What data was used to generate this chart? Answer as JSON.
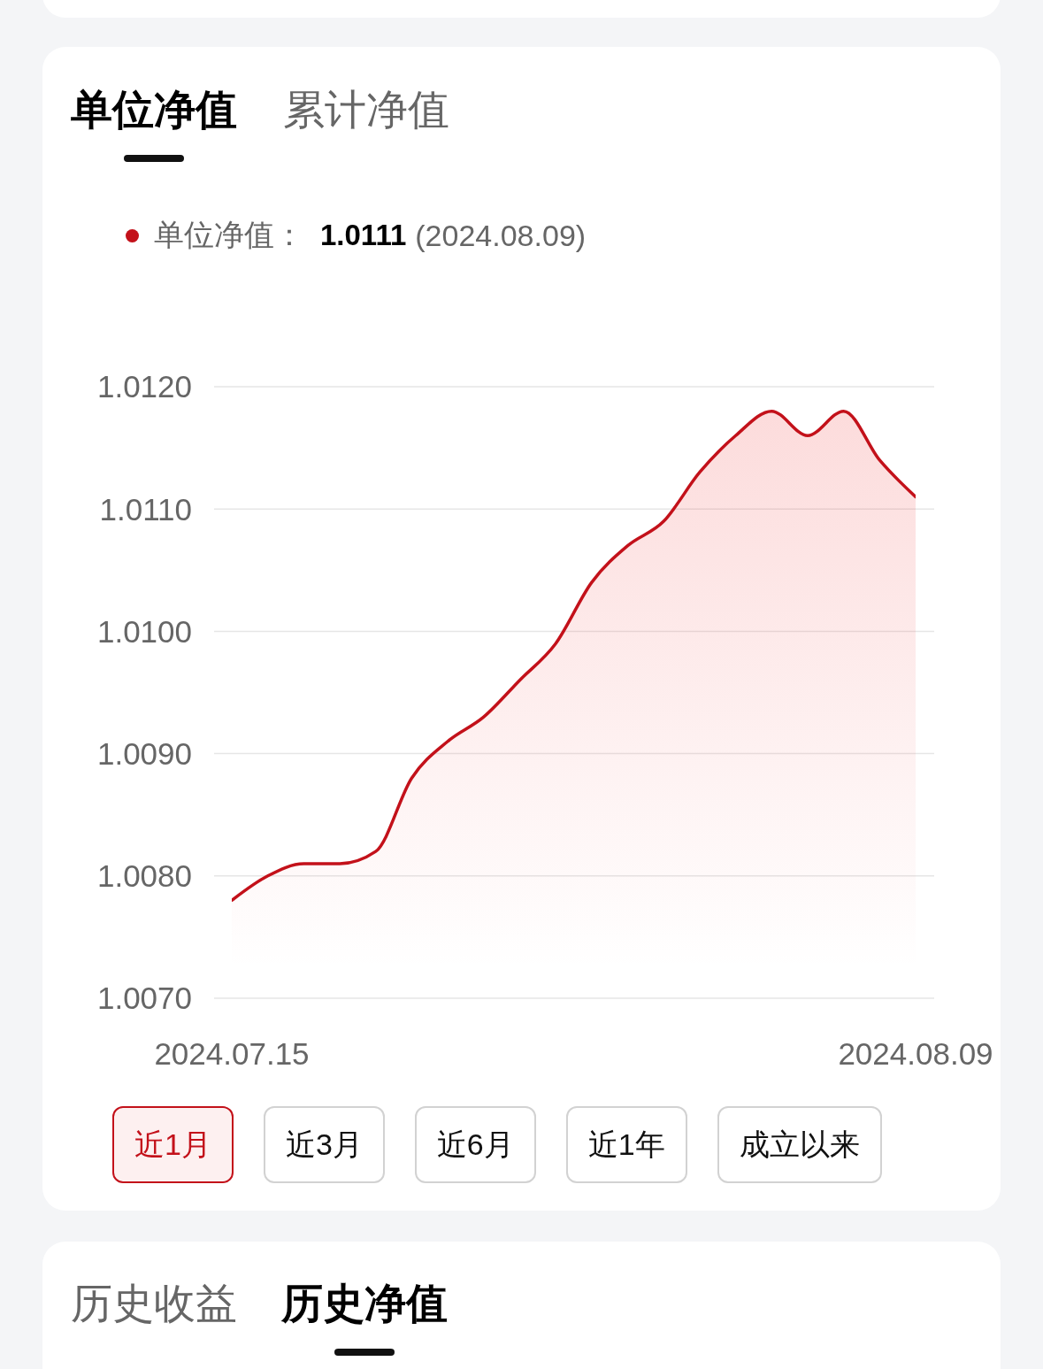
{
  "chart_data": {
    "type": "area",
    "title": "单位净值",
    "categories": [
      "2024.07.15",
      null,
      null,
      null,
      null,
      null,
      null,
      null,
      null,
      null,
      null,
      null,
      null,
      null,
      null,
      null,
      null,
      null,
      null,
      "2024.08.09"
    ],
    "series": [
      {
        "name": "单位净值：",
        "color": "#c3111a",
        "values": [
          1.0078,
          1.008,
          1.0081,
          1.0081,
          1.0082,
          1.0088,
          1.0091,
          1.0093,
          1.0096,
          1.0099,
          1.0104,
          1.0107,
          1.0109,
          1.0113,
          1.0116,
          1.0118,
          1.0116,
          1.0118,
          1.0114,
          1.0111
        ]
      }
    ],
    "ylim": [
      1.007,
      1.012
    ],
    "yticks": [
      {
        "value": 1.007,
        "label": "1.0070"
      },
      {
        "value": 1.008,
        "label": "1.0080"
      },
      {
        "value": 1.009,
        "label": "1.0090"
      },
      {
        "value": 1.01,
        "label": "1.0100"
      },
      {
        "value": 1.011,
        "label": "1.0110"
      },
      {
        "value": 1.012,
        "label": "1.0120"
      }
    ],
    "grid": "y",
    "legend": "top left",
    "annotations": [
      "累计净值",
      "1.0111",
      "(2024.08.09)",
      "近1月",
      "近3月",
      "近6月",
      "近1年",
      "成立以来",
      "历史收益",
      "历史净值"
    ]
  }
}
